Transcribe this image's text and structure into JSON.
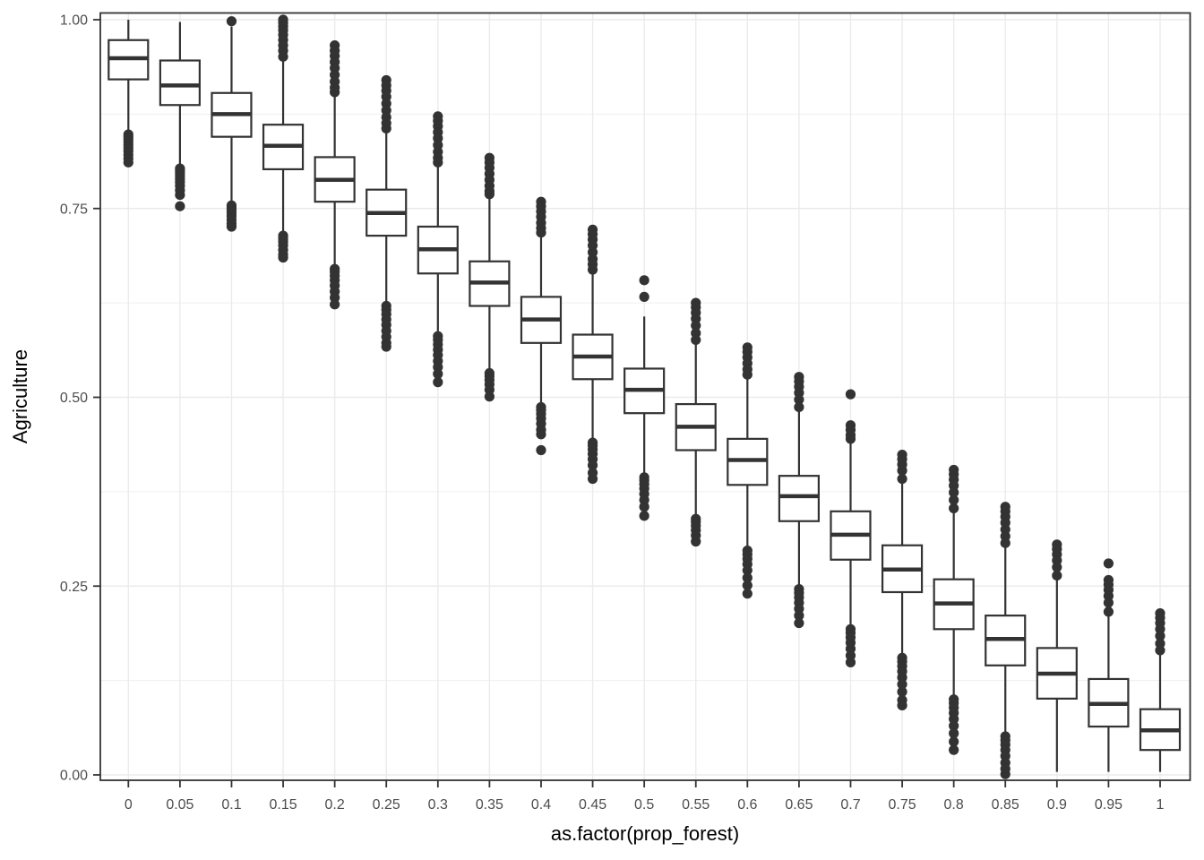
{
  "chart_data": {
    "type": "boxplot",
    "title": "",
    "xlabel": "as.factor(prop_forest)",
    "ylabel": "Agriculture",
    "categories": [
      "0",
      "0.05",
      "0.1",
      "0.15",
      "0.2",
      "0.25",
      "0.3",
      "0.35",
      "0.4",
      "0.45",
      "0.5",
      "0.55",
      "0.6",
      "0.65",
      "0.7",
      "0.75",
      "0.8",
      "0.85",
      "0.9",
      "0.95",
      "1"
    ],
    "y_ticks": [
      0,
      0.25,
      0.5,
      0.75,
      1
    ],
    "y_tick_labels": [
      "0.00",
      "0.25",
      "0.50",
      "0.75",
      "1.00"
    ],
    "y_minor_gridlines": [
      0.125,
      0.375,
      0.625,
      0.875
    ],
    "ylim": [
      0,
      1
    ],
    "grid": "major-and-minor-horizontal, major-vertical-per-category",
    "legend": "none",
    "boxes": [
      {
        "category": "0",
        "whisker_low": 0.85,
        "q1": 0.921,
        "median": 0.949,
        "q3": 0.973,
        "whisker_high": 1.0,
        "outliers": [
          0.848,
          0.845,
          0.842,
          0.838,
          0.834,
          0.83,
          0.826,
          0.821,
          0.816,
          0.811
        ]
      },
      {
        "category": "0.05",
        "whisker_low": 0.805,
        "q1": 0.887,
        "median": 0.913,
        "q3": 0.946,
        "whisker_high": 0.997,
        "outliers": [
          0.803,
          0.8,
          0.797,
          0.793,
          0.789,
          0.785,
          0.78,
          0.774,
          0.768,
          0.753
        ]
      },
      {
        "category": "0.1",
        "whisker_low": 0.758,
        "q1": 0.845,
        "median": 0.875,
        "q3": 0.903,
        "whisker_high": 0.991,
        "outliers": [
          0.754,
          0.751,
          0.748,
          0.744,
          0.74,
          0.735,
          0.73,
          0.726,
          0.998
        ]
      },
      {
        "category": "0.15",
        "whisker_low": 0.718,
        "q1": 0.802,
        "median": 0.833,
        "q3": 0.861,
        "whisker_high": 0.948,
        "outliers": [
          0.714,
          0.71,
          0.706,
          0.701,
          0.695,
          0.689,
          0.685,
          1.0,
          0.996,
          0.991,
          0.986,
          0.98,
          0.973,
          0.966,
          0.959,
          0.951
        ]
      },
      {
        "category": "0.2",
        "whisker_low": 0.672,
        "q1": 0.759,
        "median": 0.788,
        "q3": 0.818,
        "whisker_high": 0.901,
        "outliers": [
          0.67,
          0.666,
          0.661,
          0.655,
          0.648,
          0.64,
          0.632,
          0.623,
          0.966,
          0.959,
          0.952,
          0.944,
          0.936,
          0.927,
          0.918,
          0.91,
          0.904
        ]
      },
      {
        "category": "0.25",
        "whisker_low": 0.623,
        "q1": 0.714,
        "median": 0.744,
        "q3": 0.775,
        "whisker_high": 0.854,
        "outliers": [
          0.621,
          0.616,
          0.61,
          0.603,
          0.596,
          0.588,
          0.58,
          0.572,
          0.567,
          0.92,
          0.913,
          0.906,
          0.898,
          0.889,
          0.88,
          0.871,
          0.863,
          0.856
        ]
      },
      {
        "category": "0.3",
        "whisker_low": 0.583,
        "q1": 0.664,
        "median": 0.696,
        "q3": 0.726,
        "whisker_high": 0.807,
        "outliers": [
          0.581,
          0.576,
          0.57,
          0.563,
          0.556,
          0.548,
          0.54,
          0.531,
          0.52,
          0.872,
          0.866,
          0.859,
          0.851,
          0.843,
          0.834,
          0.825,
          0.817,
          0.811
        ]
      },
      {
        "category": "0.35",
        "whisker_low": 0.534,
        "q1": 0.621,
        "median": 0.652,
        "q3": 0.68,
        "whisker_high": 0.765,
        "outliers": [
          0.532,
          0.528,
          0.523,
          0.517,
          0.51,
          0.501,
          0.817,
          0.811,
          0.804,
          0.796,
          0.788,
          0.78,
          0.773,
          0.769
        ]
      },
      {
        "category": "0.4",
        "whisker_low": 0.489,
        "q1": 0.572,
        "median": 0.603,
        "q3": 0.633,
        "whisker_high": 0.714,
        "outliers": [
          0.487,
          0.483,
          0.478,
          0.472,
          0.465,
          0.457,
          0.451,
          0.43,
          0.759,
          0.753,
          0.746,
          0.739,
          0.731,
          0.724,
          0.718
        ]
      },
      {
        "category": "0.45",
        "whisker_low": 0.442,
        "q1": 0.524,
        "median": 0.554,
        "q3": 0.583,
        "whisker_high": 0.665,
        "outliers": [
          0.44,
          0.436,
          0.431,
          0.425,
          0.418,
          0.41,
          0.4,
          0.392,
          0.722,
          0.716,
          0.709,
          0.701,
          0.692,
          0.683,
          0.676,
          0.669
        ]
      },
      {
        "category": "0.5",
        "whisker_low": 0.396,
        "q1": 0.479,
        "median": 0.51,
        "q3": 0.538,
        "whisker_high": 0.607,
        "outliers": [
          0.394,
          0.39,
          0.385,
          0.379,
          0.372,
          0.364,
          0.355,
          0.343,
          0.655,
          0.633
        ]
      },
      {
        "category": "0.55",
        "whisker_low": 0.341,
        "q1": 0.43,
        "median": 0.461,
        "q3": 0.491,
        "whisker_high": 0.572,
        "outliers": [
          0.339,
          0.335,
          0.33,
          0.324,
          0.317,
          0.309,
          0.625,
          0.619,
          0.612,
          0.604,
          0.595,
          0.585,
          0.576
        ]
      },
      {
        "category": "0.6",
        "whisker_low": 0.298,
        "q1": 0.384,
        "median": 0.417,
        "q3": 0.445,
        "whisker_high": 0.528,
        "outliers": [
          0.297,
          0.292,
          0.286,
          0.279,
          0.271,
          0.261,
          0.251,
          0.24,
          0.566,
          0.56,
          0.553,
          0.545,
          0.537,
          0.53
        ]
      },
      {
        "category": "0.65",
        "whisker_low": 0.248,
        "q1": 0.336,
        "median": 0.369,
        "q3": 0.396,
        "whisker_high": 0.483,
        "outliers": [
          0.246,
          0.241,
          0.235,
          0.228,
          0.22,
          0.211,
          0.201,
          0.527,
          0.521,
          0.514,
          0.506,
          0.497,
          0.487
        ]
      },
      {
        "category": "0.7",
        "whisker_low": 0.195,
        "q1": 0.285,
        "median": 0.318,
        "q3": 0.349,
        "whisker_high": 0.442,
        "outliers": [
          0.193,
          0.188,
          0.182,
          0.175,
          0.167,
          0.158,
          0.149,
          0.504,
          0.463,
          0.457,
          0.45,
          0.445
        ]
      },
      {
        "category": "0.75",
        "whisker_low": 0.157,
        "q1": 0.242,
        "median": 0.272,
        "q3": 0.304,
        "whisker_high": 0.388,
        "outliers": [
          0.155,
          0.15,
          0.144,
          0.137,
          0.129,
          0.12,
          0.11,
          0.099,
          0.092,
          0.424,
          0.418,
          0.411,
          0.403,
          0.392
        ]
      },
      {
        "category": "0.8",
        "whisker_low": 0.102,
        "q1": 0.193,
        "median": 0.227,
        "q3": 0.259,
        "whisker_high": 0.349,
        "outliers": [
          0.1,
          0.095,
          0.089,
          0.082,
          0.074,
          0.065,
          0.055,
          0.044,
          0.033,
          0.404,
          0.398,
          0.391,
          0.383,
          0.374,
          0.364,
          0.353
        ]
      },
      {
        "category": "0.85",
        "whisker_low": 0.052,
        "q1": 0.145,
        "median": 0.18,
        "q3": 0.211,
        "whisker_high": 0.303,
        "outliers": [
          0.051,
          0.046,
          0.04,
          0.033,
          0.025,
          0.016,
          0.008,
          0.001,
          0.355,
          0.349,
          0.342,
          0.334,
          0.325,
          0.316,
          0.307
        ]
      },
      {
        "category": "0.9",
        "whisker_low": 0.004,
        "q1": 0.101,
        "median": 0.134,
        "q3": 0.168,
        "whisker_high": 0.262,
        "outliers": [
          0.305,
          0.299,
          0.292,
          0.284,
          0.275,
          0.264
        ]
      },
      {
        "category": "0.95",
        "whisker_low": 0.004,
        "q1": 0.064,
        "median": 0.094,
        "q3": 0.127,
        "whisker_high": 0.214,
        "outliers": [
          0.28,
          0.258,
          0.252,
          0.245,
          0.237,
          0.228,
          0.216
        ]
      },
      {
        "category": "1",
        "whisker_low": 0.004,
        "q1": 0.033,
        "median": 0.059,
        "q3": 0.087,
        "whisker_high": 0.163,
        "outliers": [
          0.214,
          0.208,
          0.201,
          0.193,
          0.184,
          0.174,
          0.165
        ]
      }
    ]
  },
  "style": {
    "background": "#ffffff",
    "panel_background": "#ffffff",
    "panel_border": "#333333",
    "grid_major": "#ebebeb",
    "grid_minor": "#efefef",
    "box_stroke": "#333333",
    "box_fill": "#ffffff",
    "outlier_fill": "#333333",
    "tick_color": "#333333",
    "axis_text_color": "#4d4d4d",
    "axis_title_color": "#000000"
  }
}
